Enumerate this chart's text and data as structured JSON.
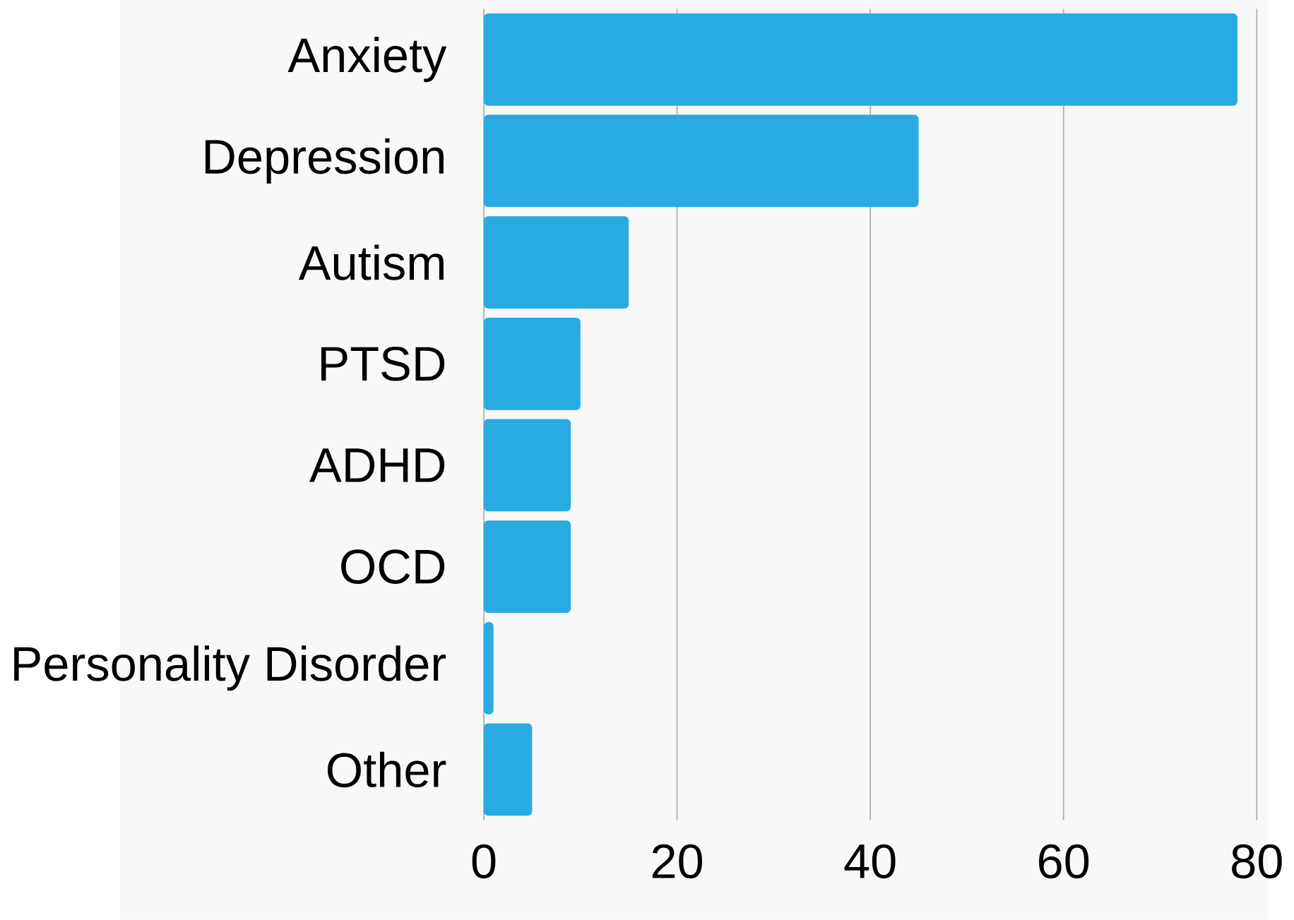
{
  "chart_data": {
    "type": "bar",
    "orientation": "horizontal",
    "categories": [
      "Anxiety",
      "Depression",
      "Autism",
      "PTSD",
      "ADHD",
      "OCD",
      "Personality Disorder",
      "Other"
    ],
    "values": [
      78,
      45,
      15,
      10,
      9,
      9,
      1,
      5
    ],
    "color": "#29abe2",
    "xlim": [
      0,
      80
    ],
    "xticks": [
      0,
      20,
      40,
      60,
      80
    ],
    "grid": "x"
  }
}
